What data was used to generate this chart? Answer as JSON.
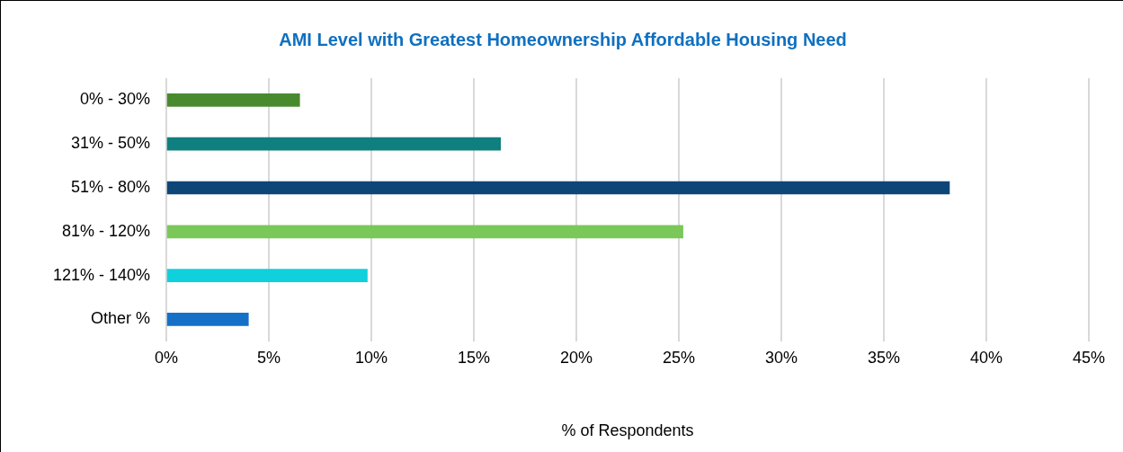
{
  "chart_data": {
    "type": "bar",
    "orientation": "horizontal",
    "title": "AMI Level with Greatest Homeownership Affordable Housing Need",
    "xlabel": "% of Respondents",
    "categories": [
      "0% - 30%",
      "31% - 50%",
      "51% - 80%",
      "81% - 120%",
      "121% - 140%",
      "Other %"
    ],
    "values": [
      6.5,
      16.3,
      38.2,
      25.2,
      9.8,
      4.0
    ],
    "colors": [
      "#4a8a2e",
      "#0f7f7f",
      "#0d4677",
      "#7ac75a",
      "#0fd0dc",
      "#1570c8"
    ],
    "xlim": [
      0,
      45
    ],
    "xticks": [
      {
        "value": 0,
        "label": "0%"
      },
      {
        "value": 5,
        "label": "5%"
      },
      {
        "value": 10,
        "label": "10%"
      },
      {
        "value": 15,
        "label": "15%"
      },
      {
        "value": 20,
        "label": "20%"
      },
      {
        "value": 25,
        "label": "25%"
      },
      {
        "value": 30,
        "label": "30%"
      },
      {
        "value": 35,
        "label": "35%"
      },
      {
        "value": 40,
        "label": "40%"
      },
      {
        "value": 45,
        "label": "45%"
      }
    ],
    "grid": "x",
    "legend": false
  }
}
